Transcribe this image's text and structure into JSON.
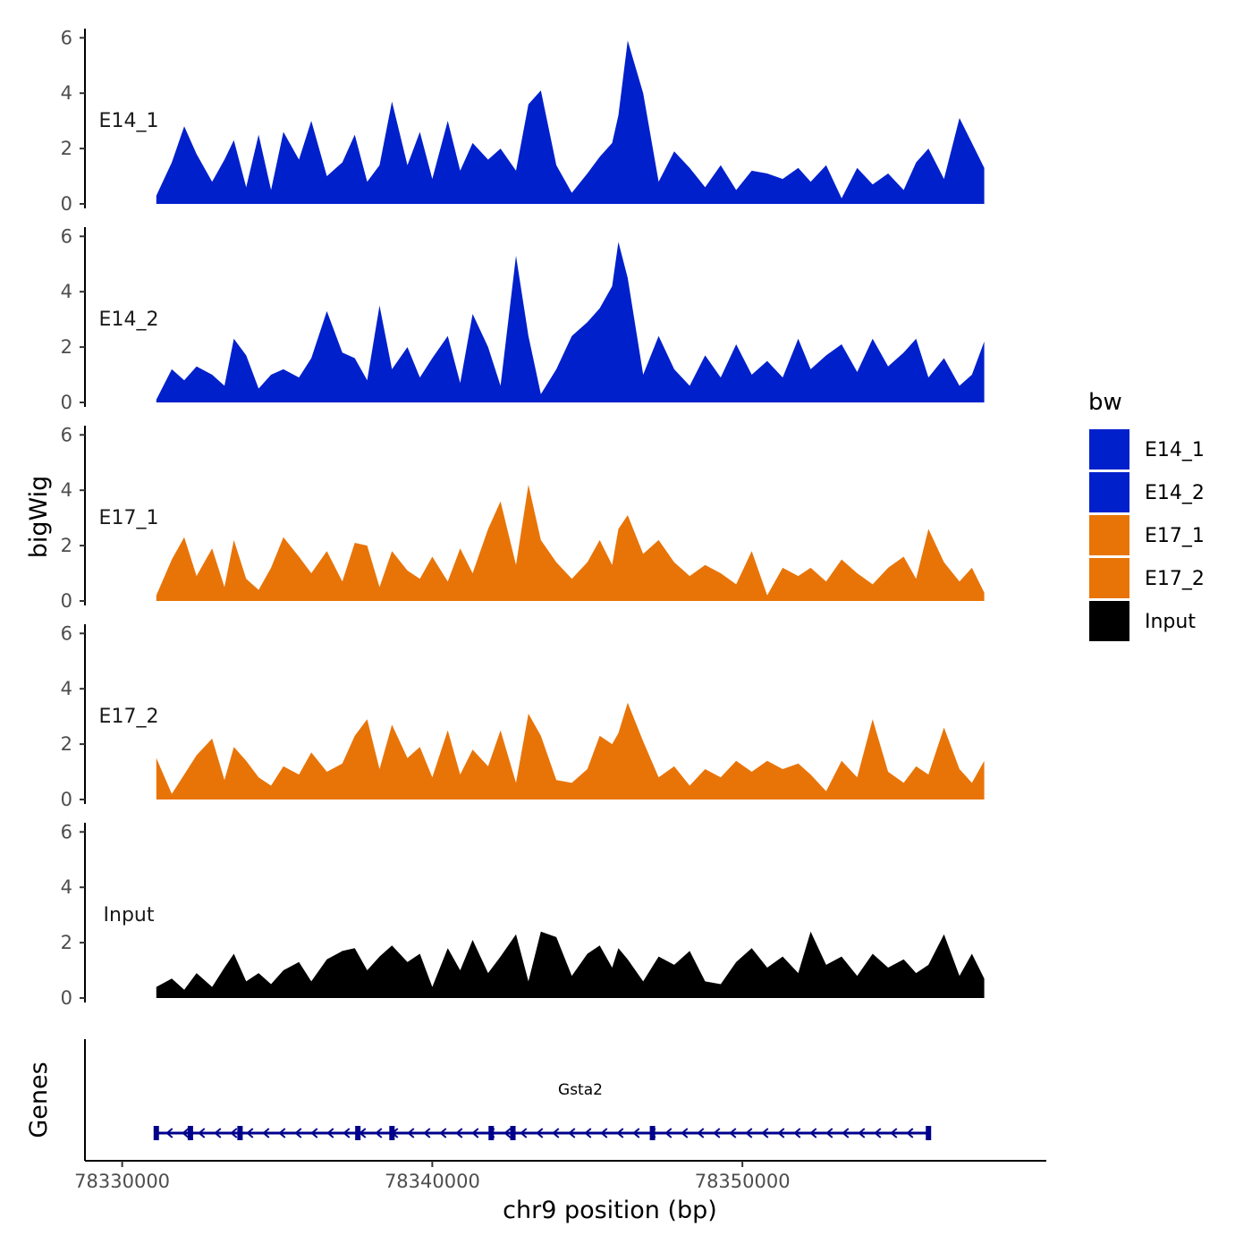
{
  "chart_data": {
    "type": "area",
    "xlabel": "chr9 position (bp)",
    "ylabel": "bigWig",
    "genes_label": "Genes",
    "xlim": [
      78328800,
      78359800
    ],
    "x_ticks": [
      78330000,
      78340000,
      78350000
    ],
    "x_tick_labels": [
      "78330000",
      "78340000",
      "78350000"
    ],
    "ylim": [
      0,
      6.3
    ],
    "y_ticks": [
      0,
      2,
      4,
      6
    ],
    "y_tick_labels": [
      "0",
      "2",
      "4",
      "6"
    ],
    "legend": {
      "title": "bw",
      "entries": [
        {
          "label": "E14_1",
          "color": "#0020cc"
        },
        {
          "label": "E14_2",
          "color": "#0020cc"
        },
        {
          "label": "E17_1",
          "color": "#e87408"
        },
        {
          "label": "E17_2",
          "color": "#e87408"
        },
        {
          "label": "Input",
          "color": "#000000"
        }
      ]
    },
    "series": [
      {
        "name": "E14_1",
        "color": "#0020cc",
        "x": [
          78331100,
          78331600,
          78332000,
          78332400,
          78332900,
          78333300,
          78333600,
          78334000,
          78334400,
          78334800,
          78335200,
          78335700,
          78336100,
          78336600,
          78337100,
          78337500,
          78337900,
          78338300,
          78338700,
          78339200,
          78339600,
          78340000,
          78340500,
          78340900,
          78341300,
          78341800,
          78342200,
          78342700,
          78343100,
          78343500,
          78344000,
          78344500,
          78345000,
          78345400,
          78345800,
          78346000,
          78346300,
          78346800,
          78347300,
          78347800,
          78348300,
          78348800,
          78349300,
          78349800,
          78350300,
          78350800,
          78351300,
          78351800,
          78352200,
          78352700,
          78353200,
          78353700,
          78354200,
          78354700,
          78355200,
          78355600,
          78356000,
          78356500,
          78357000,
          78357400,
          78357800
        ],
        "values": [
          0.3,
          1.5,
          2.8,
          1.8,
          0.8,
          1.6,
          2.3,
          0.6,
          2.5,
          0.5,
          2.6,
          1.6,
          3.0,
          1.0,
          1.5,
          2.5,
          0.8,
          1.4,
          3.7,
          1.4,
          2.6,
          0.9,
          3.0,
          1.2,
          2.2,
          1.6,
          2.0,
          1.2,
          3.6,
          4.1,
          1.4,
          0.4,
          1.1,
          1.7,
          2.2,
          3.2,
          5.9,
          4.0,
          0.8,
          1.9,
          1.3,
          0.6,
          1.4,
          0.5,
          1.2,
          1.1,
          0.9,
          1.3,
          0.8,
          1.4,
          0.2,
          1.3,
          0.7,
          1.1,
          0.5,
          1.5,
          2.0,
          0.9,
          3.1,
          2.2,
          1.3
        ]
      },
      {
        "name": "E14_2",
        "color": "#0020cc",
        "x": [
          78331100,
          78331600,
          78332000,
          78332400,
          78332900,
          78333300,
          78333600,
          78334000,
          78334400,
          78334800,
          78335200,
          78335700,
          78336100,
          78336600,
          78337100,
          78337500,
          78337900,
          78338300,
          78338700,
          78339200,
          78339600,
          78340000,
          78340500,
          78340900,
          78341300,
          78341800,
          78342200,
          78342700,
          78343100,
          78343500,
          78344000,
          78344500,
          78345000,
          78345400,
          78345800,
          78346000,
          78346300,
          78346800,
          78347300,
          78347800,
          78348300,
          78348800,
          78349300,
          78349800,
          78350300,
          78350800,
          78351300,
          78351800,
          78352200,
          78352700,
          78353200,
          78353700,
          78354200,
          78354700,
          78355200,
          78355600,
          78356000,
          78356500,
          78357000,
          78357400,
          78357800
        ],
        "values": [
          0.1,
          1.2,
          0.8,
          1.3,
          1.0,
          0.6,
          2.3,
          1.7,
          0.5,
          1.0,
          1.2,
          0.9,
          1.6,
          3.3,
          1.8,
          1.6,
          0.8,
          3.5,
          1.2,
          2.0,
          0.9,
          1.6,
          2.4,
          0.7,
          3.2,
          2.0,
          0.6,
          5.3,
          2.4,
          0.3,
          1.2,
          2.4,
          2.9,
          3.4,
          4.2,
          5.8,
          4.5,
          1.0,
          2.4,
          1.2,
          0.6,
          1.7,
          0.9,
          2.1,
          1.0,
          1.5,
          0.9,
          2.3,
          1.2,
          1.7,
          2.1,
          1.1,
          2.3,
          1.3,
          1.8,
          2.3,
          0.9,
          1.6,
          0.6,
          1.0,
          2.2
        ]
      },
      {
        "name": "E17_1",
        "color": "#e87408",
        "x": [
          78331100,
          78331600,
          78332000,
          78332400,
          78332900,
          78333300,
          78333600,
          78334000,
          78334400,
          78334800,
          78335200,
          78335700,
          78336100,
          78336600,
          78337100,
          78337500,
          78337900,
          78338300,
          78338700,
          78339200,
          78339600,
          78340000,
          78340500,
          78340900,
          78341300,
          78341800,
          78342200,
          78342700,
          78343100,
          78343500,
          78344000,
          78344500,
          78345000,
          78345400,
          78345800,
          78346000,
          78346300,
          78346800,
          78347300,
          78347800,
          78348300,
          78348800,
          78349300,
          78349800,
          78350300,
          78350800,
          78351300,
          78351800,
          78352200,
          78352700,
          78353200,
          78353700,
          78354200,
          78354700,
          78355200,
          78355600,
          78356000,
          78356500,
          78357000,
          78357400,
          78357800
        ],
        "values": [
          0.2,
          1.5,
          2.3,
          0.9,
          1.9,
          0.5,
          2.2,
          0.8,
          0.4,
          1.2,
          2.3,
          1.6,
          1.0,
          1.8,
          0.7,
          2.1,
          2.0,
          0.5,
          1.8,
          1.1,
          0.8,
          1.6,
          0.7,
          1.9,
          1.0,
          2.6,
          3.6,
          1.3,
          4.2,
          2.2,
          1.4,
          0.8,
          1.4,
          2.2,
          1.3,
          2.6,
          3.1,
          1.7,
          2.2,
          1.4,
          0.9,
          1.3,
          1.0,
          0.6,
          1.8,
          0.2,
          1.2,
          0.9,
          1.2,
          0.7,
          1.5,
          1.0,
          0.6,
          1.2,
          1.6,
          0.8,
          2.6,
          1.4,
          0.7,
          1.2,
          0.3
        ]
      },
      {
        "name": "E17_2",
        "color": "#e87408",
        "x": [
          78331100,
          78331600,
          78332000,
          78332400,
          78332900,
          78333300,
          78333600,
          78334000,
          78334400,
          78334800,
          78335200,
          78335700,
          78336100,
          78336600,
          78337100,
          78337500,
          78337900,
          78338300,
          78338700,
          78339200,
          78339600,
          78340000,
          78340500,
          78340900,
          78341300,
          78341800,
          78342200,
          78342700,
          78343100,
          78343500,
          78344000,
          78344500,
          78345000,
          78345400,
          78345800,
          78346000,
          78346300,
          78346800,
          78347300,
          78347800,
          78348300,
          78348800,
          78349300,
          78349800,
          78350300,
          78350800,
          78351300,
          78351800,
          78352200,
          78352700,
          78353200,
          78353700,
          78354200,
          78354700,
          78355200,
          78355600,
          78356000,
          78356500,
          78357000,
          78357400,
          78357800
        ],
        "values": [
          1.5,
          0.2,
          0.9,
          1.6,
          2.2,
          0.7,
          1.9,
          1.4,
          0.8,
          0.5,
          1.2,
          0.9,
          1.7,
          1.0,
          1.3,
          2.3,
          2.9,
          1.1,
          2.7,
          1.5,
          1.9,
          0.8,
          2.5,
          0.9,
          1.8,
          1.2,
          2.5,
          0.6,
          3.1,
          2.3,
          0.7,
          0.6,
          1.1,
          2.3,
          2.0,
          2.4,
          3.5,
          2.1,
          0.8,
          1.2,
          0.5,
          1.1,
          0.8,
          1.4,
          1.0,
          1.4,
          1.1,
          1.3,
          0.9,
          0.3,
          1.4,
          0.8,
          2.9,
          1.0,
          0.6,
          1.2,
          0.9,
          2.6,
          1.1,
          0.6,
          1.4
        ]
      },
      {
        "name": "Input",
        "color": "#000000",
        "x": [
          78331100,
          78331600,
          78332000,
          78332400,
          78332900,
          78333300,
          78333600,
          78334000,
          78334400,
          78334800,
          78335200,
          78335700,
          78336100,
          78336600,
          78337100,
          78337500,
          78337900,
          78338300,
          78338700,
          78339200,
          78339600,
          78340000,
          78340500,
          78340900,
          78341300,
          78341800,
          78342200,
          78342700,
          78343100,
          78343500,
          78344000,
          78344500,
          78345000,
          78345400,
          78345800,
          78346000,
          78346300,
          78346800,
          78347300,
          78347800,
          78348300,
          78348800,
          78349300,
          78349800,
          78350300,
          78350800,
          78351300,
          78351800,
          78352200,
          78352700,
          78353200,
          78353700,
          78354200,
          78354700,
          78355200,
          78355600,
          78356000,
          78356500,
          78357000,
          78357400,
          78357800
        ],
        "values": [
          0.4,
          0.7,
          0.3,
          0.9,
          0.4,
          1.1,
          1.6,
          0.6,
          0.9,
          0.5,
          1.0,
          1.3,
          0.6,
          1.4,
          1.7,
          1.8,
          1.0,
          1.5,
          1.9,
          1.3,
          1.6,
          0.4,
          1.8,
          1.0,
          2.1,
          0.9,
          1.5,
          2.3,
          0.6,
          2.4,
          2.2,
          0.8,
          1.6,
          1.9,
          1.1,
          1.8,
          1.4,
          0.6,
          1.5,
          1.2,
          1.7,
          0.6,
          0.5,
          1.3,
          1.8,
          1.1,
          1.5,
          0.9,
          2.4,
          1.2,
          1.5,
          0.8,
          1.6,
          1.1,
          1.4,
          0.9,
          1.2,
          2.3,
          0.8,
          1.6,
          0.7
        ]
      }
    ],
    "gene": {
      "name": "Gsta2",
      "start": 78331100,
      "end": 78356000,
      "strand": "-",
      "exons": [
        78331100,
        78332200,
        78333800,
        78337600,
        78338700,
        78341900,
        78342600,
        78347100,
        78356000
      ]
    }
  }
}
